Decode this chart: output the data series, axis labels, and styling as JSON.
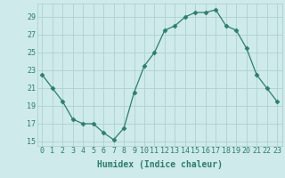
{
  "x": [
    0,
    1,
    2,
    3,
    4,
    5,
    6,
    7,
    8,
    9,
    10,
    11,
    12,
    13,
    14,
    15,
    16,
    17,
    18,
    19,
    20,
    21,
    22,
    23
  ],
  "y": [
    22.5,
    21.0,
    19.5,
    17.5,
    17.0,
    17.0,
    16.0,
    15.2,
    16.5,
    20.5,
    23.5,
    25.0,
    27.5,
    28.0,
    29.0,
    29.5,
    29.5,
    29.8,
    28.0,
    27.5,
    25.5,
    22.5,
    21.0,
    19.5
  ],
  "line_color": "#2e7d6e",
  "marker": "D",
  "marker_size": 2.5,
  "bg_color": "#ceeaea",
  "grid_color": "#aacccc",
  "xlabel": "Humidex (Indice chaleur)",
  "xlim": [
    -0.5,
    23.5
  ],
  "ylim": [
    14.5,
    30.5
  ],
  "yticks": [
    15,
    17,
    19,
    21,
    23,
    25,
    27,
    29
  ],
  "xtick_labels": [
    "0",
    "1",
    "2",
    "3",
    "4",
    "5",
    "6",
    "7",
    "8",
    "9",
    "10",
    "11",
    "12",
    "13",
    "14",
    "15",
    "16",
    "17",
    "18",
    "19",
    "20",
    "21",
    "22",
    "23"
  ],
  "tick_fontsize": 6,
  "xlabel_fontsize": 7
}
